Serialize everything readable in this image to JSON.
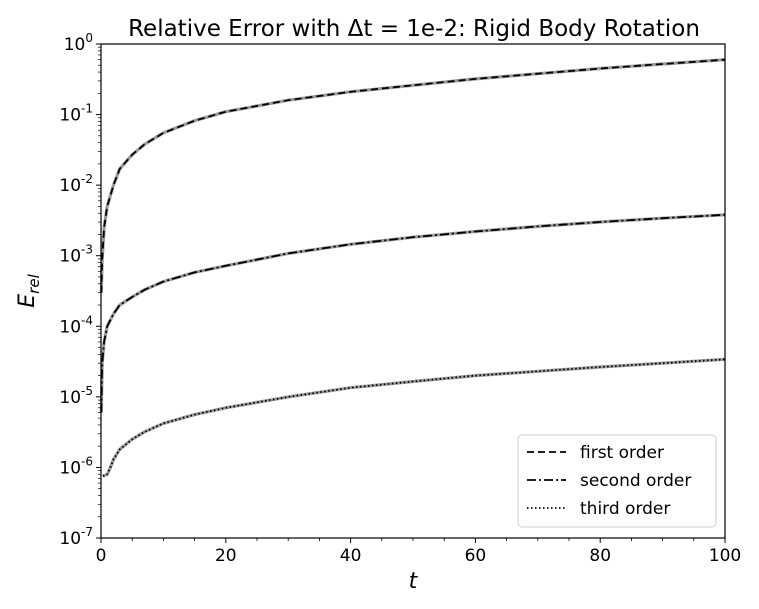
{
  "chart_data": {
    "type": "line",
    "title": "Relative Error with Δt = 1e-2: Rigid Body Rotation",
    "xlabel": "t",
    "ylabel_main": "E",
    "ylabel_sub": "rel",
    "xlim": [
      0,
      100
    ],
    "ylim": [
      1e-07,
      1
    ],
    "yscale": "log",
    "grid": false,
    "legend_position": "bottom-right",
    "x_ticks": [
      "0",
      "20",
      "40",
      "60",
      "80",
      "100"
    ],
    "y_ticks": [
      {
        "base": "10",
        "exp": "-7"
      },
      {
        "base": "10",
        "exp": "-6"
      },
      {
        "base": "10",
        "exp": "-5"
      },
      {
        "base": "10",
        "exp": "-4"
      },
      {
        "base": "10",
        "exp": "-3"
      },
      {
        "base": "10",
        "exp": "-2"
      },
      {
        "base": "10",
        "exp": "-1"
      },
      {
        "base": "10",
        "exp": "0"
      }
    ],
    "series": [
      {
        "name": "first order",
        "style": "dashed",
        "x": [
          0.05,
          0.2,
          0.5,
          1,
          2,
          3,
          5,
          7,
          10,
          15,
          20,
          30,
          40,
          50,
          60,
          70,
          80,
          90,
          100
        ],
        "y": [
          0.0003,
          0.0009,
          0.0025,
          0.005,
          0.01,
          0.017,
          0.027,
          0.038,
          0.055,
          0.082,
          0.11,
          0.16,
          0.21,
          0.26,
          0.32,
          0.38,
          0.45,
          0.52,
          0.6
        ]
      },
      {
        "name": "second order",
        "style": "dashdot",
        "x": [
          0.05,
          0.2,
          0.5,
          1,
          2,
          3,
          5,
          7,
          10,
          15,
          20,
          30,
          40,
          50,
          60,
          70,
          80,
          90,
          100
        ],
        "y": [
          6e-06,
          3e-05,
          6e-05,
          0.0001,
          0.00015,
          0.0002,
          0.00026,
          0.00033,
          0.00043,
          0.00058,
          0.00072,
          0.00108,
          0.00145,
          0.00183,
          0.0022,
          0.0026,
          0.003,
          0.0034,
          0.0038
        ]
      },
      {
        "name": "third order",
        "style": "dotted",
        "x": [
          0.3,
          1,
          1.5,
          2,
          3,
          5,
          7,
          10,
          15,
          20,
          30,
          40,
          50,
          60,
          70,
          80,
          90,
          100
        ],
        "y": [
          7.5e-07,
          8e-07,
          1e-06,
          1.3e-06,
          1.8e-06,
          2.5e-06,
          3.2e-06,
          4.2e-06,
          5.6e-06,
          7e-06,
          1e-05,
          1.35e-05,
          1.65e-05,
          2e-05,
          2.3e-05,
          2.65e-05,
          3e-05,
          3.4e-05
        ]
      }
    ]
  }
}
